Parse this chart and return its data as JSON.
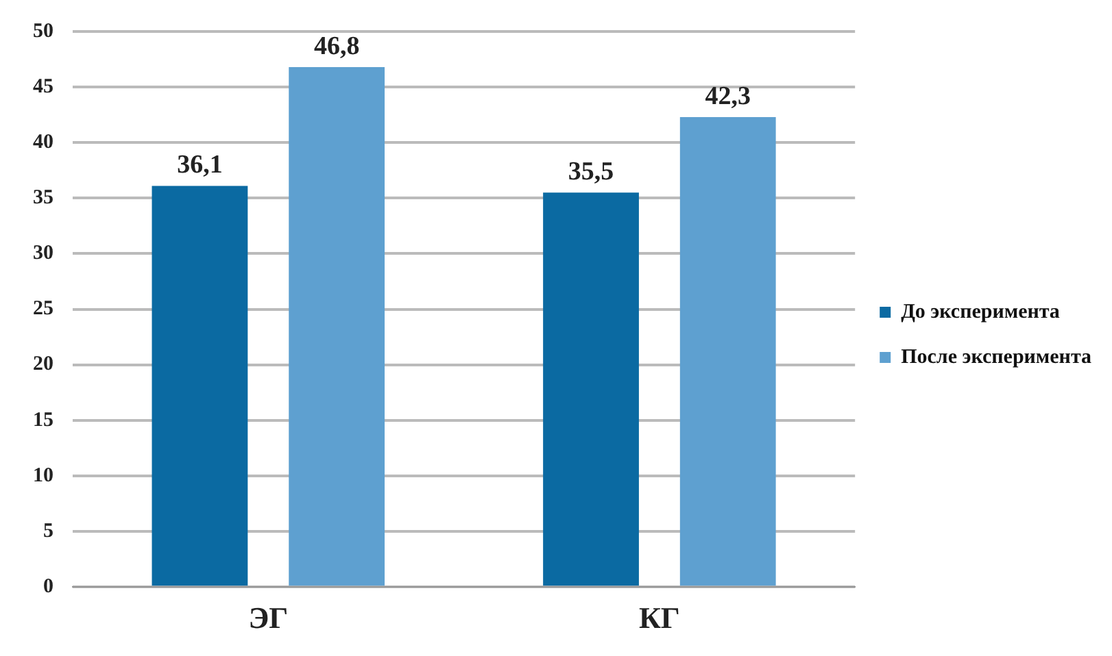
{
  "chart_data": {
    "type": "bar",
    "categories": [
      "ЭГ",
      "КГ"
    ],
    "series": [
      {
        "name": "До эксперимента",
        "color": "#0b6aa2",
        "values": [
          36.1,
          35.5
        ],
        "value_labels": [
          "36,1",
          "35,5"
        ]
      },
      {
        "name": "После эксперимента",
        "color": "#5ea0d0",
        "values": [
          46.8,
          42.3
        ],
        "value_labels": [
          "46,8",
          "42,3"
        ]
      }
    ],
    "ylim": [
      0,
      50
    ],
    "yticks": [
      0,
      5,
      10,
      15,
      20,
      25,
      30,
      35,
      40,
      45,
      50
    ],
    "grid": "y",
    "legend": "right"
  }
}
